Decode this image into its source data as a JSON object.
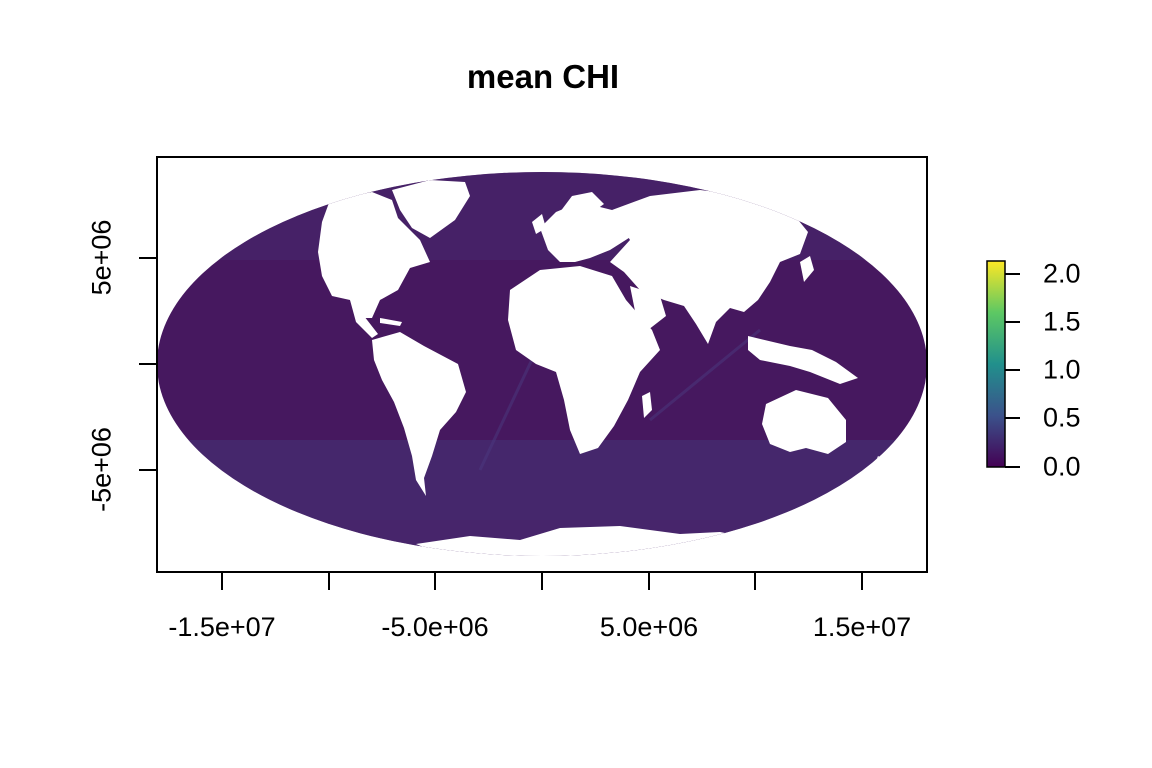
{
  "title": "mean CHI",
  "x_ticks": [
    "-1.5e+07",
    "-5.0e+06",
    "5.0e+06",
    "1.5e+07"
  ],
  "y_ticks": [
    "5e+06",
    "-5e+06"
  ],
  "legend": {
    "labels": [
      "2.0",
      "1.5",
      "1.0",
      "0.5",
      "0.0"
    ],
    "colors": [
      "#440154",
      "#3b528b",
      "#21908c",
      "#5dc863",
      "#fde725"
    ]
  },
  "colors": {
    "ocean": "#46185f",
    "land": "#ffffff",
    "frame": "#000000"
  }
}
